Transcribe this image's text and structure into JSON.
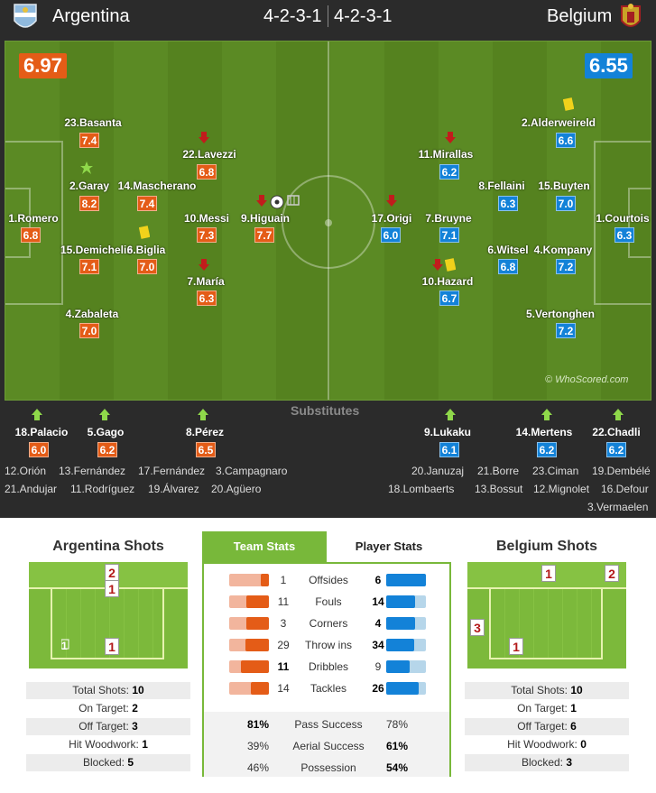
{
  "header": {
    "home_team": "Argentina",
    "home_formation": "4-2-3-1",
    "away_formation": "4-2-3-1",
    "away_team": "Belgium"
  },
  "ratings": {
    "home": "6.97",
    "away": "6.55"
  },
  "watermark": "© WhoScored.com",
  "home_players": [
    {
      "name": "23.Basanta",
      "rating": "7.4"
    },
    {
      "name": "22.Lavezzi",
      "rating": "6.8"
    },
    {
      "name": "2.Garay",
      "rating": "8.2"
    },
    {
      "name": "14.Mascherano",
      "rating": "7.4"
    },
    {
      "name": "1.Romero",
      "rating": "6.8"
    },
    {
      "name": "10.Messi",
      "rating": "7.3"
    },
    {
      "name": "9.Higuain",
      "rating": "7.7"
    },
    {
      "name": "15.Demichelis",
      "rating": "7.1"
    },
    {
      "name": "6.Biglia",
      "rating": "7.0"
    },
    {
      "name": "7.María",
      "rating": "6.3"
    },
    {
      "name": "4.Zabaleta",
      "rating": "7.0"
    }
  ],
  "away_players": [
    {
      "name": "2.Alderweireld",
      "rating": "6.6"
    },
    {
      "name": "11.Mirallas",
      "rating": "6.2"
    },
    {
      "name": "8.Fellaini",
      "rating": "6.3"
    },
    {
      "name": "15.Buyten",
      "rating": "7.0"
    },
    {
      "name": "17.Origi",
      "rating": "6.0"
    },
    {
      "name": "7.Bruyne",
      "rating": "7.1"
    },
    {
      "name": "1.Courtois",
      "rating": "6.3"
    },
    {
      "name": "6.Witsel",
      "rating": "6.8"
    },
    {
      "name": "4.Kompany",
      "rating": "7.2"
    },
    {
      "name": "10.Hazard",
      "rating": "6.7"
    },
    {
      "name": "5.Vertonghen",
      "rating": "7.2"
    }
  ],
  "substitutes_label": "Substitutes",
  "home_subs_used": [
    {
      "name": "18.Palacio",
      "rating": "6.0"
    },
    {
      "name": "5.Gago",
      "rating": "6.2"
    },
    {
      "name": "8.Pérez",
      "rating": "6.5"
    }
  ],
  "away_subs_used": [
    {
      "name": "9.Lukaku",
      "rating": "6.1"
    },
    {
      "name": "14.Mertens",
      "rating": "6.2"
    },
    {
      "name": "22.Chadli",
      "rating": "6.2"
    }
  ],
  "home_bench": [
    "12.Orión",
    "13.Fernández",
    "17.Fernández",
    "3.Campagnaro",
    "21.Andujar",
    "11.Rodríguez",
    "19.Álvarez",
    "20.Agüero"
  ],
  "away_bench": [
    "20.Januzaj",
    "21.Borre",
    "23.Ciman",
    "19.Dembélé",
    "18.Lombaerts",
    "13.Bossut",
    "12.Mignolet",
    "16.Defour",
    "3.Vermaelen"
  ],
  "home_shots": {
    "title": "Argentina Shots",
    "zones": [
      "2",
      "1",
      "1",
      "1"
    ],
    "stats": [
      {
        "label": "Total Shots:",
        "value": "10"
      },
      {
        "label": "On Target:",
        "value": "2"
      },
      {
        "label": "Off Target:",
        "value": "3"
      },
      {
        "label": "Hit Woodwork:",
        "value": "1"
      },
      {
        "label": "Blocked:",
        "value": "5"
      }
    ]
  },
  "away_shots": {
    "title": "Belgium Shots",
    "zones": [
      "1",
      "2",
      "3",
      "1"
    ],
    "stats": [
      {
        "label": "Total Shots:",
        "value": "10"
      },
      {
        "label": "On Target:",
        "value": "1"
      },
      {
        "label": "Off Target:",
        "value": "6"
      },
      {
        "label": "Hit Woodwork:",
        "value": "0"
      },
      {
        "label": "Blocked:",
        "value": "3"
      }
    ]
  },
  "tabs": {
    "team": "Team Stats",
    "player": "Player Stats"
  },
  "team_stats": [
    {
      "label": "Offsides",
      "home": "1",
      "away": "6",
      "home_frac": 0.14,
      "away_frac": 0.86
    },
    {
      "label": "Fouls",
      "home": "11",
      "away": "14",
      "home_frac": 0.44,
      "away_frac": 0.56
    },
    {
      "label": "Corners",
      "home": "3",
      "away": "4",
      "home_frac": 0.43,
      "away_frac": 0.57
    },
    {
      "label": "Throw ins",
      "home": "29",
      "away": "34",
      "home_frac": 0.46,
      "away_frac": 0.54
    },
    {
      "label": "Dribbles",
      "home": "11",
      "away": "9",
      "home_frac": 0.55,
      "away_frac": 0.45
    },
    {
      "label": "Tackles",
      "home": "14",
      "away": "26",
      "home_frac": 0.35,
      "away_frac": 0.65
    }
  ],
  "pct_stats": [
    {
      "label": "Pass Success",
      "home": "81%",
      "away": "78%"
    },
    {
      "label": "Aerial Success",
      "home": "39%",
      "away": "61%"
    },
    {
      "label": "Possession",
      "home": "46%",
      "away": "54%"
    }
  ],
  "colors": {
    "home": "#e45c17",
    "away": "#1382d8",
    "pitch": "#55821f",
    "tab_active": "#78b83a"
  }
}
